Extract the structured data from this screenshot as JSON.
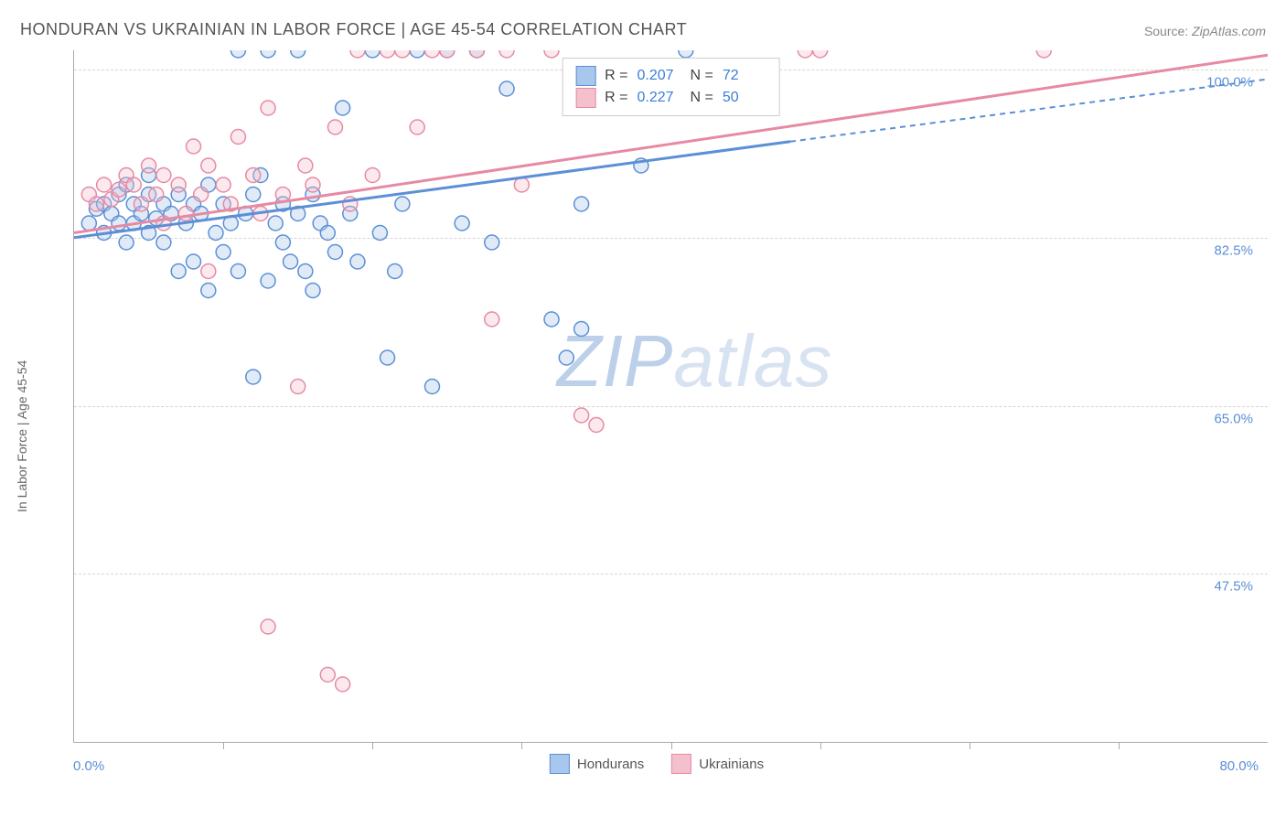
{
  "title": "HONDURAN VS UKRAINIAN IN LABOR FORCE | AGE 45-54 CORRELATION CHART",
  "source_label": "Source:",
  "source_value": "ZipAtlas.com",
  "y_axis_label": "In Labor Force | Age 45-54",
  "watermark": {
    "zip": "ZIP",
    "atlas": "atlas"
  },
  "chart": {
    "type": "scatter",
    "background_color": "#ffffff",
    "grid_color": "#d5d5d5",
    "axis_color": "#aaaaaa",
    "tick_label_color": "#5b8fd6",
    "xlim": [
      0,
      80
    ],
    "ylim": [
      30,
      102
    ],
    "x_ticks": [
      10,
      20,
      30,
      40,
      50,
      60,
      70
    ],
    "y_gridlines": [
      100,
      82.5,
      65,
      47.5
    ],
    "y_tick_labels": [
      "100.0%",
      "82.5%",
      "65.0%",
      "47.5%"
    ],
    "x_min_label": "0.0%",
    "x_max_label": "80.0%",
    "marker_radius": 8,
    "series": [
      {
        "name": "Hondurans",
        "color_stroke": "#5b8fd6",
        "color_fill": "#a9c6ec",
        "R": "0.207",
        "N": "72",
        "regression": {
          "x1": 0,
          "y1": 82.5,
          "x2_solid": 48,
          "y2_solid": 92.5,
          "x2_dash": 80,
          "y2_dash": 99
        },
        "points": [
          [
            1,
            84
          ],
          [
            1.5,
            85.5
          ],
          [
            2,
            86
          ],
          [
            2,
            83
          ],
          [
            2.5,
            85
          ],
          [
            3,
            84
          ],
          [
            3,
            87
          ],
          [
            3.5,
            88
          ],
          [
            3.5,
            82
          ],
          [
            4,
            86
          ],
          [
            4,
            84
          ],
          [
            4.5,
            85
          ],
          [
            5,
            87
          ],
          [
            5,
            83
          ],
          [
            5,
            89
          ],
          [
            5.5,
            84.5
          ],
          [
            6,
            86
          ],
          [
            6,
            82
          ],
          [
            6.5,
            85
          ],
          [
            7,
            87
          ],
          [
            7,
            79
          ],
          [
            7.5,
            84
          ],
          [
            8,
            86
          ],
          [
            8,
            80
          ],
          [
            8.5,
            85
          ],
          [
            9,
            88
          ],
          [
            9,
            77
          ],
          [
            9.5,
            83
          ],
          [
            10,
            86
          ],
          [
            10,
            81
          ],
          [
            10.5,
            84
          ],
          [
            11,
            102
          ],
          [
            11,
            79
          ],
          [
            11.5,
            85
          ],
          [
            12,
            68
          ],
          [
            12,
            87
          ],
          [
            12.5,
            89
          ],
          [
            13,
            78
          ],
          [
            13,
            102
          ],
          [
            13.5,
            84
          ],
          [
            14,
            86
          ],
          [
            14,
            82
          ],
          [
            14.5,
            80
          ],
          [
            15,
            102
          ],
          [
            15,
            85
          ],
          [
            15.5,
            79
          ],
          [
            16,
            87
          ],
          [
            16,
            77
          ],
          [
            16.5,
            84
          ],
          [
            17,
            83
          ],
          [
            17.5,
            81
          ],
          [
            18,
            96
          ],
          [
            18.5,
            85
          ],
          [
            19,
            80
          ],
          [
            20,
            102
          ],
          [
            20.5,
            83
          ],
          [
            21,
            70
          ],
          [
            21.5,
            79
          ],
          [
            22,
            86
          ],
          [
            23,
            102
          ],
          [
            24,
            67
          ],
          [
            25,
            102
          ],
          [
            26,
            84
          ],
          [
            27,
            102
          ],
          [
            28,
            82
          ],
          [
            29,
            98
          ],
          [
            32,
            74
          ],
          [
            33,
            70
          ],
          [
            34,
            86
          ],
          [
            34,
            73
          ],
          [
            38,
            90
          ],
          [
            41,
            102
          ]
        ]
      },
      {
        "name": "Ukrainians",
        "color_stroke": "#e68aa3",
        "color_fill": "#f4c0ce",
        "R": "0.227",
        "N": "50",
        "regression": {
          "x1": 0,
          "y1": 83,
          "x2_solid": 80,
          "y2_solid": 101.5,
          "x2_dash": 80,
          "y2_dash": 101.5
        },
        "points": [
          [
            1,
            87
          ],
          [
            1.5,
            86
          ],
          [
            2,
            88
          ],
          [
            2.5,
            86.5
          ],
          [
            3,
            87.5
          ],
          [
            3.5,
            89
          ],
          [
            4,
            88
          ],
          [
            4.5,
            86
          ],
          [
            5,
            90
          ],
          [
            5.5,
            87
          ],
          [
            6,
            89
          ],
          [
            6,
            84
          ],
          [
            7,
            88
          ],
          [
            7.5,
            85
          ],
          [
            8,
            92
          ],
          [
            8.5,
            87
          ],
          [
            9,
            90
          ],
          [
            9,
            79
          ],
          [
            10,
            88
          ],
          [
            10.5,
            86
          ],
          [
            11,
            93
          ],
          [
            12,
            89
          ],
          [
            12.5,
            85
          ],
          [
            13,
            42
          ],
          [
            13,
            96
          ],
          [
            14,
            87
          ],
          [
            15,
            67
          ],
          [
            15.5,
            90
          ],
          [
            16,
            88
          ],
          [
            17,
            37
          ],
          [
            17.5,
            94
          ],
          [
            18,
            36
          ],
          [
            18.5,
            86
          ],
          [
            19,
            102
          ],
          [
            20,
            89
          ],
          [
            21,
            102
          ],
          [
            22,
            102
          ],
          [
            23,
            94
          ],
          [
            24,
            102
          ],
          [
            25,
            102
          ],
          [
            27,
            102
          ],
          [
            28,
            74
          ],
          [
            29,
            102
          ],
          [
            30,
            88
          ],
          [
            32,
            102
          ],
          [
            34,
            64
          ],
          [
            35,
            63
          ],
          [
            49,
            102
          ],
          [
            50,
            102
          ],
          [
            65,
            102
          ]
        ]
      }
    ],
    "bottom_legend": [
      {
        "label": "Hondurans",
        "stroke": "#5b8fd6",
        "fill": "#a9c6ec"
      },
      {
        "label": "Ukrainians",
        "stroke": "#e68aa3",
        "fill": "#f4c0ce"
      }
    ]
  }
}
